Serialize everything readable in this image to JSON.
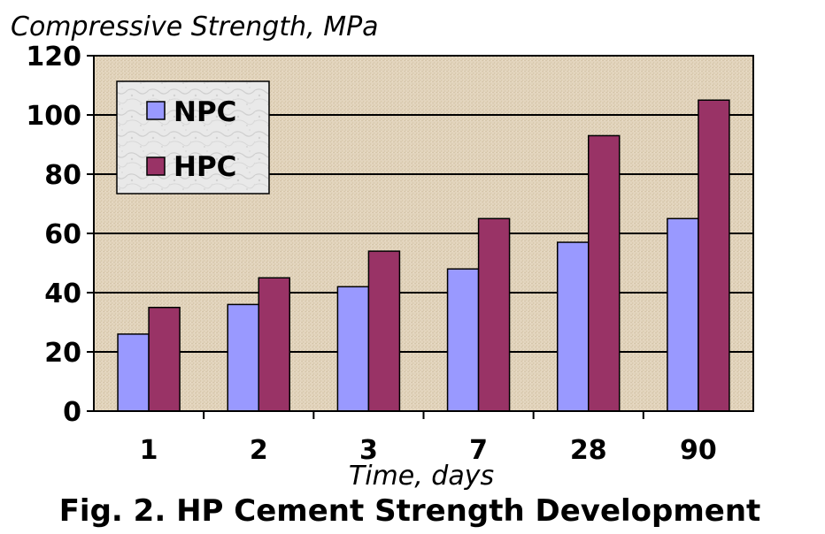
{
  "chart_data": {
    "type": "bar",
    "title": "",
    "caption": "Fig. 2. HP Cement Strength Development",
    "ylabel": "Compressive Strength, MPa",
    "xlabel": "Time, days",
    "categories": [
      "1",
      "2",
      "3",
      "7",
      "28",
      "90"
    ],
    "series": [
      {
        "name": "NPC",
        "values": [
          26,
          36,
          42,
          48,
          57,
          65
        ],
        "color": "#9999ff"
      },
      {
        "name": "HPC",
        "values": [
          35,
          45,
          54,
          65,
          93,
          105
        ],
        "color": "#993366"
      }
    ],
    "ylim": [
      0,
      120
    ],
    "yticks": [
      "0",
      "20",
      "40",
      "60",
      "80",
      "100",
      "120"
    ],
    "grid": true,
    "legend_position": "top-left",
    "plot_background": "#e2d4bd"
  }
}
